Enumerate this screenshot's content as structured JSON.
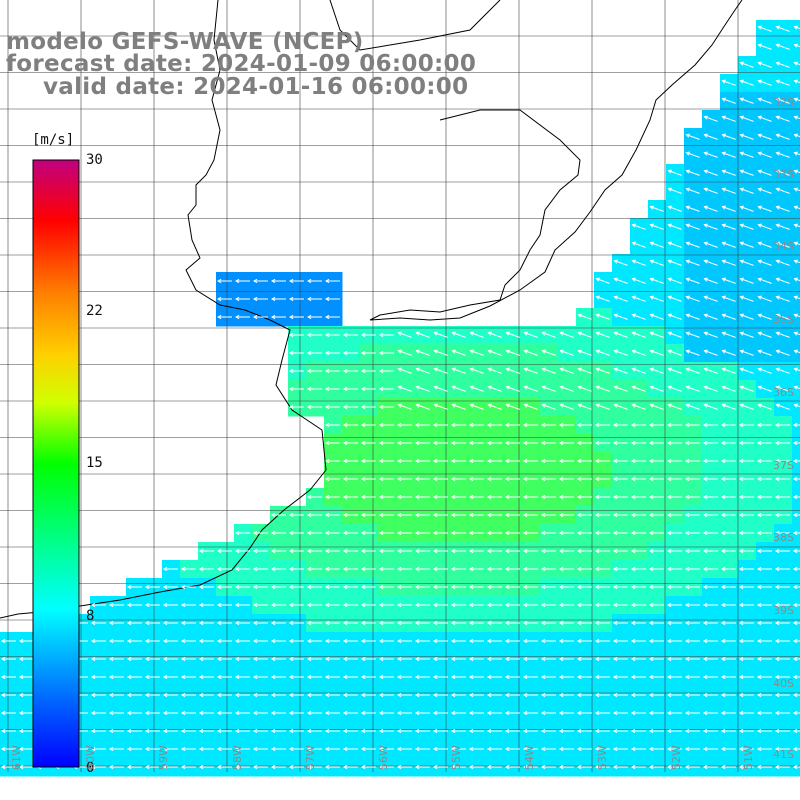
{
  "header": {
    "title": "modelo GEFS-WAVE (NCEP)",
    "forecast": "forecast date: 2024-01-09 06:00:00",
    "valid": "valid date: 2024-01-16 06:00:00"
  },
  "colorbar": {
    "unit": "[m/s]",
    "ticks": [
      "30",
      "22",
      "15",
      "8",
      "0"
    ],
    "tick_values": [
      30,
      22,
      15,
      8,
      0
    ],
    "colors": [
      "#0000ff",
      "#00a8ff",
      "#00ffff",
      "#00ff00",
      "#ffff00",
      "#ff8000",
      "#ff0000",
      "#c00080"
    ]
  },
  "lat_labels": [
    "32S",
    "33S",
    "34S",
    "35S",
    "36S",
    "37S",
    "38S",
    "39S",
    "40S",
    "41S"
  ],
  "lon_labels": [
    "61W",
    "60W",
    "59W",
    "58W",
    "57W",
    "56W",
    "55W",
    "54W",
    "53W",
    "52W",
    "51W"
  ],
  "map": {
    "ocean_wind_colors": [
      "#00e8ff",
      "#20ffc8",
      "#30ffa0",
      "#40ff60",
      "#00c8ff",
      "#0090ff"
    ],
    "land_color": "#ffffff",
    "coast_color": "#000000",
    "grid_color": "#404040",
    "arrow_color": "#ffffff",
    "wind_direction": "from east / northeast"
  }
}
